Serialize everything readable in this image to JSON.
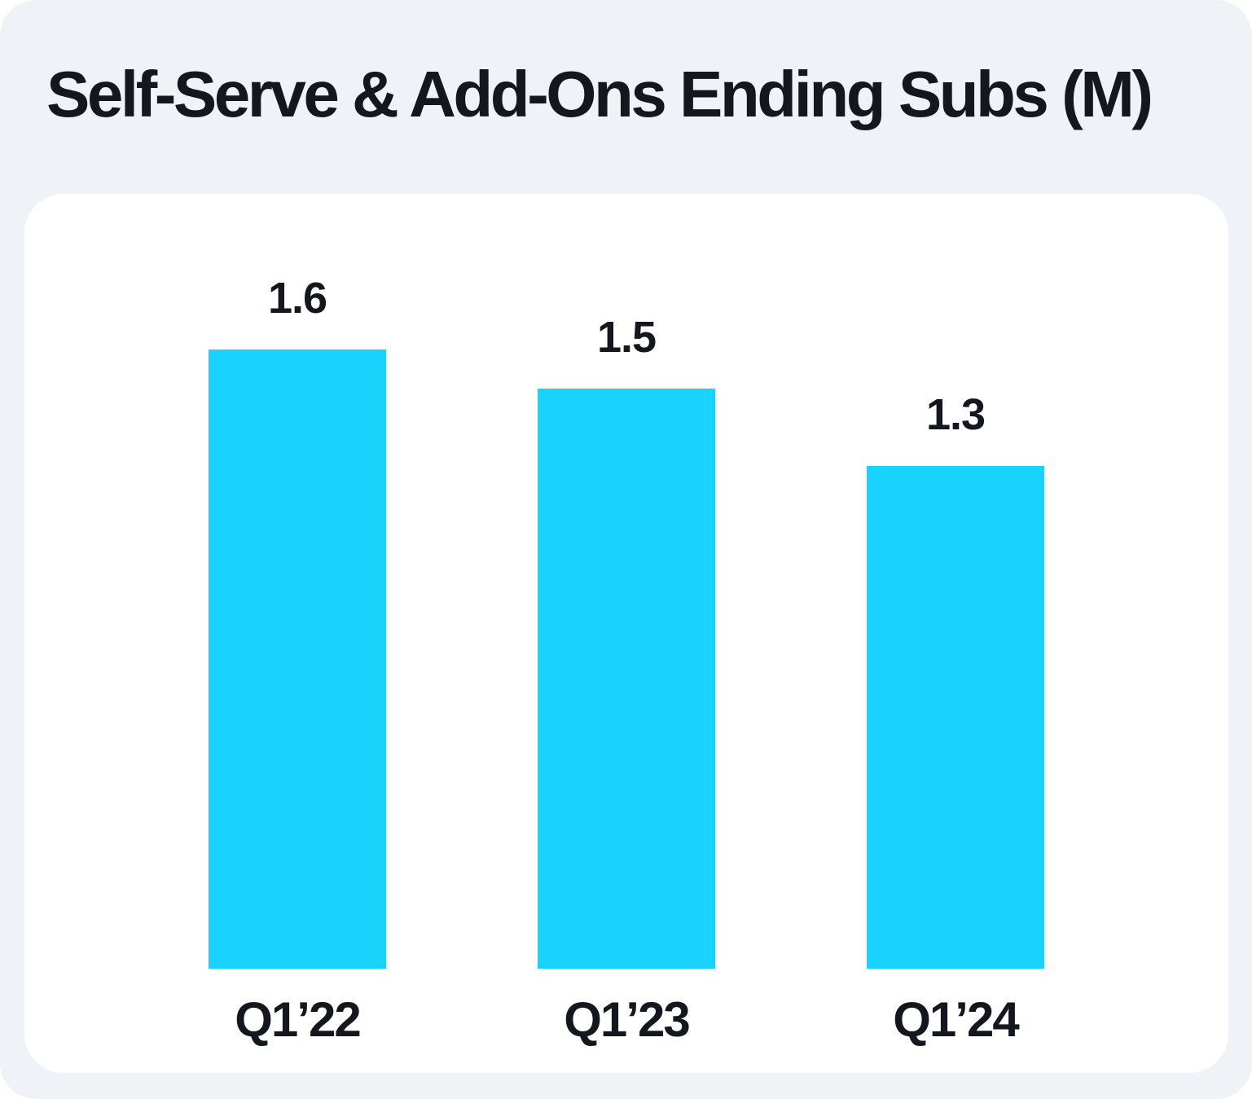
{
  "page": {
    "background_color": "#EFF2F7",
    "card_background_color": "#FFFFFF",
    "text_color": "#14171E"
  },
  "chart_data": {
    "type": "bar",
    "title": "Self-Serve & Add-Ons Ending Subs (M)",
    "categories": [
      "Q1’22",
      "Q1’23",
      "Q1’24"
    ],
    "values": [
      1.6,
      1.5,
      1.3
    ],
    "value_labels": [
      "1.6",
      "1.5",
      "1.3"
    ],
    "bar_color": "#19D3FD",
    "xlabel": "",
    "ylabel": "",
    "ylim": [
      0,
      1.6
    ],
    "grid": false,
    "axes_visible": false,
    "legend": false,
    "value_label_position": "above-bar",
    "category_label_position": "below-bar"
  }
}
